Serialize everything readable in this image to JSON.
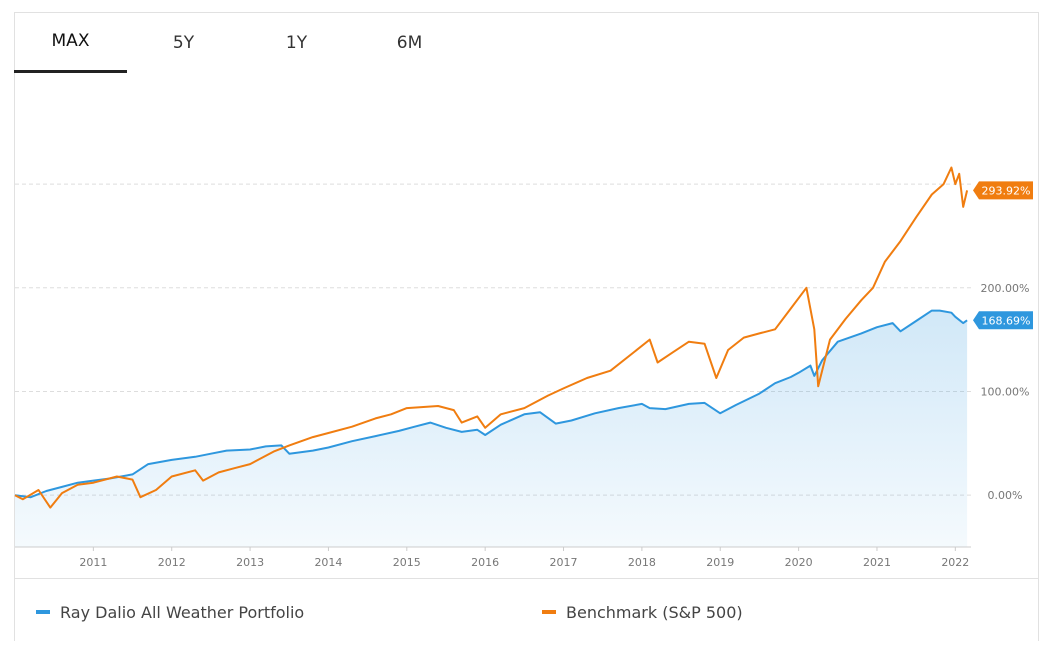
{
  "tabs": [
    {
      "label": "MAX",
      "active": true
    },
    {
      "label": "5Y",
      "active": false
    },
    {
      "label": "1Y",
      "active": false
    },
    {
      "label": "6M",
      "active": false
    }
  ],
  "colors": {
    "portfolio": "#2e97de",
    "benchmark": "#f07d10",
    "gridline": "#dddddd",
    "axis_text": "#777777"
  },
  "legend": {
    "portfolio_label": "Ray Dalio All Weather Portfolio",
    "benchmark_label": "Benchmark (S&P 500)"
  },
  "chart_data": {
    "type": "line",
    "title": "",
    "xlabel": "",
    "ylabel": "",
    "x_range": [
      2010.0,
      2022.2
    ],
    "ylim": [
      -50,
      385
    ],
    "grid": "horizontal dashed",
    "legend_position": "bottom",
    "x_ticks": [
      "2011",
      "2012",
      "2013",
      "2014",
      "2015",
      "2016",
      "2017",
      "2018",
      "2019",
      "2020",
      "2021",
      "2022"
    ],
    "y_ticks": [
      {
        "value": 0,
        "label": "0.00%"
      },
      {
        "value": 100,
        "label": "100.00%"
      },
      {
        "value": 200,
        "label": "200.00%"
      },
      {
        "value": 300,
        "label": ""
      }
    ],
    "end_labels": {
      "portfolio": "168.69%",
      "benchmark": "293.92%"
    },
    "series": [
      {
        "name": "Ray Dalio All Weather Portfolio",
        "area_fill": true,
        "points": [
          [
            2010.0,
            0
          ],
          [
            2010.2,
            -2
          ],
          [
            2010.4,
            4
          ],
          [
            2010.6,
            8
          ],
          [
            2010.8,
            12
          ],
          [
            2011.0,
            14
          ],
          [
            2011.2,
            16
          ],
          [
            2011.5,
            20
          ],
          [
            2011.7,
            30
          ],
          [
            2012.0,
            34
          ],
          [
            2012.3,
            37
          ],
          [
            2012.5,
            40
          ],
          [
            2012.7,
            43
          ],
          [
            2013.0,
            44
          ],
          [
            2013.2,
            47
          ],
          [
            2013.4,
            48
          ],
          [
            2013.5,
            40
          ],
          [
            2013.8,
            43
          ],
          [
            2014.0,
            46
          ],
          [
            2014.3,
            52
          ],
          [
            2014.6,
            57
          ],
          [
            2014.9,
            62
          ],
          [
            2015.1,
            66
          ],
          [
            2015.3,
            70
          ],
          [
            2015.5,
            65
          ],
          [
            2015.7,
            61
          ],
          [
            2015.9,
            63
          ],
          [
            2016.0,
            58
          ],
          [
            2016.2,
            68
          ],
          [
            2016.5,
            78
          ],
          [
            2016.7,
            80
          ],
          [
            2016.9,
            69
          ],
          [
            2017.1,
            72
          ],
          [
            2017.4,
            79
          ],
          [
            2017.7,
            84
          ],
          [
            2018.0,
            88
          ],
          [
            2018.1,
            84
          ],
          [
            2018.3,
            83
          ],
          [
            2018.6,
            88
          ],
          [
            2018.8,
            89
          ],
          [
            2019.0,
            79
          ],
          [
            2019.2,
            87
          ],
          [
            2019.5,
            98
          ],
          [
            2019.7,
            108
          ],
          [
            2019.9,
            114
          ],
          [
            2020.0,
            118
          ],
          [
            2020.15,
            125
          ],
          [
            2020.2,
            115
          ],
          [
            2020.3,
            130
          ],
          [
            2020.5,
            148
          ],
          [
            2020.8,
            156
          ],
          [
            2021.0,
            162
          ],
          [
            2021.2,
            166
          ],
          [
            2021.3,
            158
          ],
          [
            2021.5,
            168
          ],
          [
            2021.7,
            178
          ],
          [
            2021.8,
            178
          ],
          [
            2021.95,
            176
          ],
          [
            2022.0,
            172
          ],
          [
            2022.1,
            166
          ],
          [
            2022.15,
            168.69
          ]
        ]
      },
      {
        "name": "Benchmark (S&P 500)",
        "area_fill": false,
        "points": [
          [
            2010.0,
            0
          ],
          [
            2010.1,
            -4
          ],
          [
            2010.3,
            5
          ],
          [
            2010.45,
            -12
          ],
          [
            2010.6,
            2
          ],
          [
            2010.8,
            10
          ],
          [
            2011.0,
            12
          ],
          [
            2011.3,
            18
          ],
          [
            2011.5,
            15
          ],
          [
            2011.6,
            -2
          ],
          [
            2011.8,
            5
          ],
          [
            2012.0,
            18
          ],
          [
            2012.3,
            24
          ],
          [
            2012.4,
            14
          ],
          [
            2012.6,
            22
          ],
          [
            2012.8,
            26
          ],
          [
            2013.0,
            30
          ],
          [
            2013.3,
            42
          ],
          [
            2013.5,
            48
          ],
          [
            2013.8,
            56
          ],
          [
            2014.0,
            60
          ],
          [
            2014.3,
            66
          ],
          [
            2014.6,
            74
          ],
          [
            2014.8,
            78
          ],
          [
            2015.0,
            84
          ],
          [
            2015.4,
            86
          ],
          [
            2015.6,
            82
          ],
          [
            2015.7,
            70
          ],
          [
            2015.9,
            76
          ],
          [
            2016.0,
            65
          ],
          [
            2016.2,
            78
          ],
          [
            2016.5,
            84
          ],
          [
            2016.8,
            96
          ],
          [
            2017.0,
            103
          ],
          [
            2017.3,
            113
          ],
          [
            2017.6,
            120
          ],
          [
            2017.9,
            138
          ],
          [
            2018.1,
            150
          ],
          [
            2018.2,
            128
          ],
          [
            2018.4,
            138
          ],
          [
            2018.6,
            148
          ],
          [
            2018.8,
            146
          ],
          [
            2018.95,
            113
          ],
          [
            2019.1,
            140
          ],
          [
            2019.3,
            152
          ],
          [
            2019.5,
            156
          ],
          [
            2019.7,
            160
          ],
          [
            2019.9,
            180
          ],
          [
            2020.1,
            200
          ],
          [
            2020.2,
            160
          ],
          [
            2020.25,
            105
          ],
          [
            2020.4,
            150
          ],
          [
            2020.6,
            170
          ],
          [
            2020.8,
            188
          ],
          [
            2020.95,
            200
          ],
          [
            2021.1,
            225
          ],
          [
            2021.3,
            245
          ],
          [
            2021.5,
            268
          ],
          [
            2021.7,
            290
          ],
          [
            2021.85,
            300
          ],
          [
            2021.95,
            316
          ],
          [
            2022.0,
            300
          ],
          [
            2022.05,
            310
          ],
          [
            2022.1,
            278
          ],
          [
            2022.15,
            293.92
          ]
        ]
      }
    ]
  }
}
